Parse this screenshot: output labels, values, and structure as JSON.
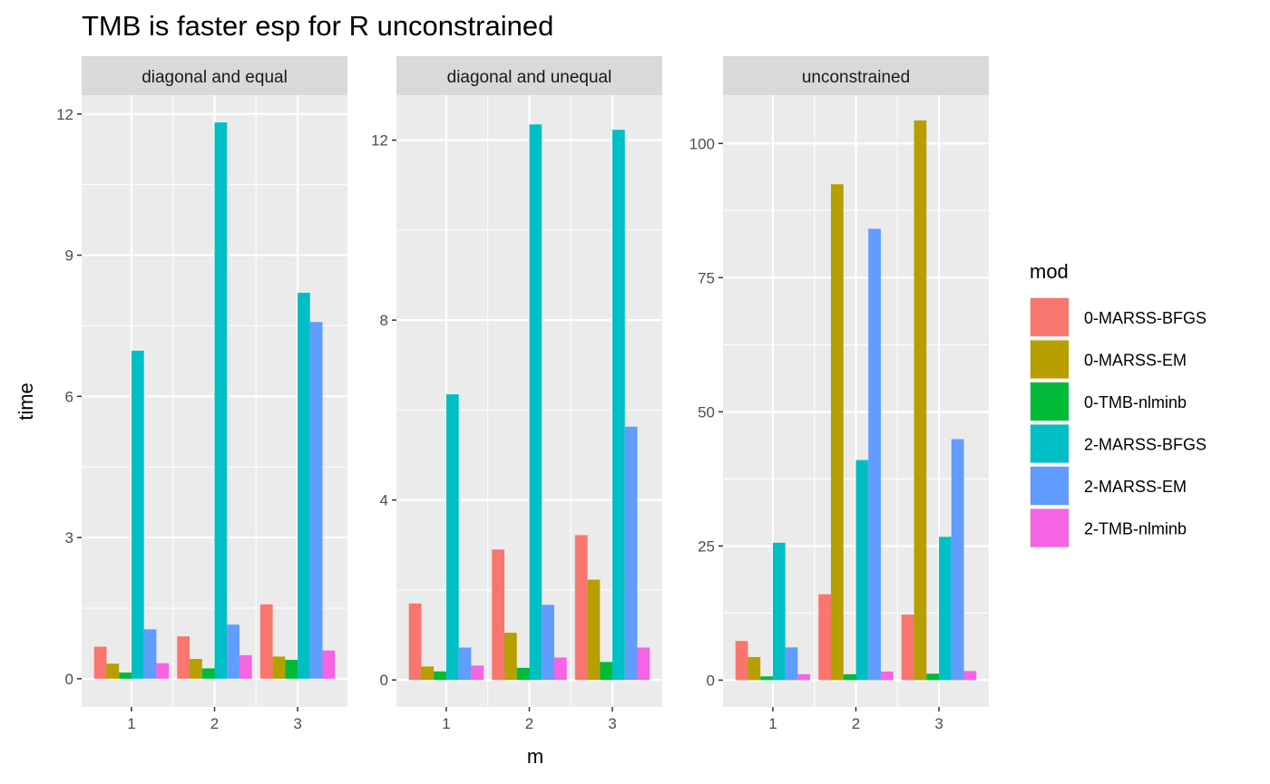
{
  "chart_data": {
    "type": "bar",
    "title": "TMB is faster esp for R unconstrained",
    "xlabel": "m",
    "ylabel": "time",
    "categories": [
      "1",
      "2",
      "3"
    ],
    "legend": {
      "title": "mod",
      "placement": "right",
      "entries": [
        {
          "name": "0-MARSS-BFGS",
          "color": "#F8766D"
        },
        {
          "name": "0-MARSS-EM",
          "color": "#B79F00"
        },
        {
          "name": "0-TMB-nlminb",
          "color": "#00BA38"
        },
        {
          "name": "2-MARSS-BFGS",
          "color": "#00BFC4"
        },
        {
          "name": "2-MARSS-EM",
          "color": "#619CFF"
        },
        {
          "name": "2-TMB-nlminb",
          "color": "#F564E3"
        }
      ]
    },
    "grid": true,
    "panels": [
      {
        "label": "diagonal and equal",
        "ylim": [
          -0.6,
          12.4
        ],
        "yticks": [
          0,
          3,
          6,
          9,
          12
        ],
        "series": [
          {
            "name": "0-MARSS-BFGS",
            "values": [
              0.68,
              0.9,
              1.58
            ]
          },
          {
            "name": "0-MARSS-EM",
            "values": [
              0.32,
              0.42,
              0.47
            ]
          },
          {
            "name": "0-TMB-nlminb",
            "values": [
              0.13,
              0.22,
              0.4
            ]
          },
          {
            "name": "2-MARSS-BFGS",
            "values": [
              6.97,
              11.82,
              8.2
            ]
          },
          {
            "name": "2-MARSS-EM",
            "values": [
              1.05,
              1.15,
              7.58
            ]
          },
          {
            "name": "2-TMB-nlminb",
            "values": [
              0.33,
              0.5,
              0.6
            ]
          }
        ]
      },
      {
        "label": "diagonal and unequal",
        "ylim": [
          -0.6,
          13.0
        ],
        "yticks": [
          0,
          4,
          8,
          12
        ],
        "series": [
          {
            "name": "0-MARSS-BFGS",
            "values": [
              1.7,
              2.9,
              3.22
            ]
          },
          {
            "name": "0-MARSS-EM",
            "values": [
              0.3,
              1.05,
              2.23
            ]
          },
          {
            "name": "0-TMB-nlminb",
            "values": [
              0.19,
              0.27,
              0.4
            ]
          },
          {
            "name": "2-MARSS-BFGS",
            "values": [
              6.35,
              12.35,
              12.23
            ]
          },
          {
            "name": "2-MARSS-EM",
            "values": [
              0.72,
              1.67,
              5.63
            ]
          },
          {
            "name": "2-TMB-nlminb",
            "values": [
              0.32,
              0.5,
              0.72
            ]
          }
        ]
      },
      {
        "label": "unconstrained",
        "ylim": [
          -5,
          109
        ],
        "yticks": [
          0,
          25,
          50,
          75,
          100
        ],
        "series": [
          {
            "name": "0-MARSS-BFGS",
            "values": [
              7.3,
              16.0,
              12.2
            ]
          },
          {
            "name": "0-MARSS-EM",
            "values": [
              4.3,
              92.4,
              104.3
            ]
          },
          {
            "name": "0-TMB-nlminb",
            "values": [
              0.7,
              1.1,
              1.2
            ]
          },
          {
            "name": "2-MARSS-BFGS",
            "values": [
              25.6,
              41.0,
              26.7
            ]
          },
          {
            "name": "2-MARSS-EM",
            "values": [
              6.1,
              84.1,
              44.9
            ]
          },
          {
            "name": "2-TMB-nlminb",
            "values": [
              1.1,
              1.6,
              1.7
            ]
          }
        ]
      }
    ]
  }
}
